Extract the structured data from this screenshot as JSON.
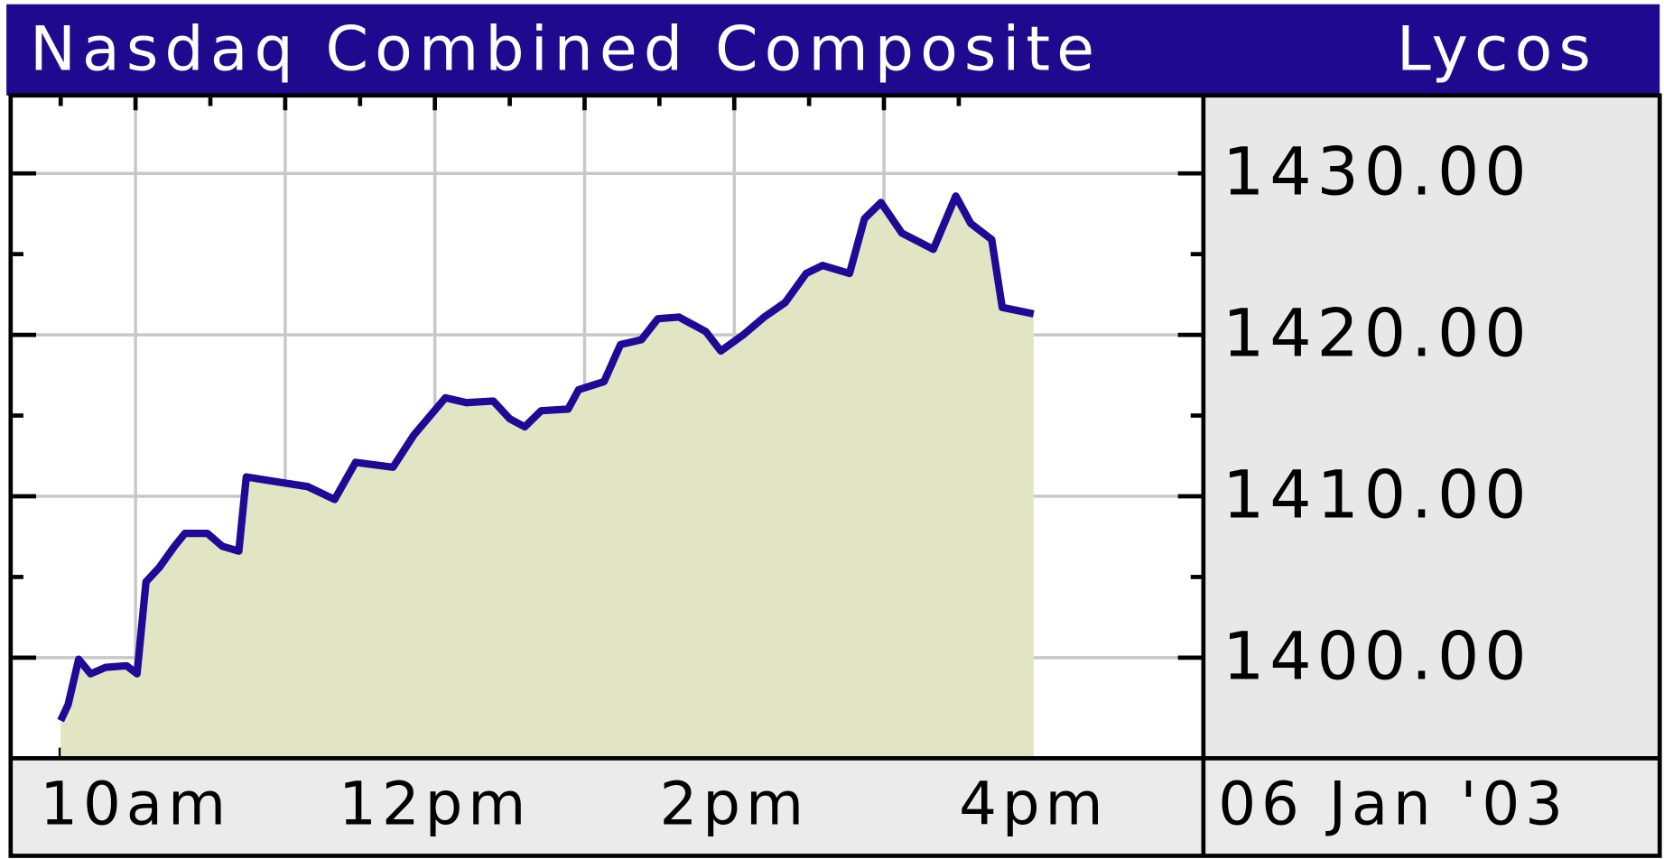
{
  "chart_data": {
    "type": "line",
    "title": "Nasdaq Combined Composite",
    "source": "Lycos",
    "date": "06 Jan '03",
    "x": [
      9.5,
      9.55,
      9.62,
      9.7,
      9.8,
      9.94,
      10.01,
      10.07,
      10.16,
      10.26,
      10.33,
      10.48,
      10.58,
      10.69,
      10.74,
      11.01,
      11.15,
      11.33,
      11.47,
      11.72,
      11.86,
      12.07,
      12.21,
      12.39,
      12.5,
      12.6,
      12.71,
      12.89,
      12.96,
      13.13,
      13.24,
      13.38,
      13.49,
      13.63,
      13.81,
      13.91,
      14.06,
      14.2,
      14.34,
      14.48,
      14.59,
      14.77,
      14.87,
      14.98,
      15.12,
      15.33,
      15.48,
      15.58,
      15.72,
      15.79,
      16.0
    ],
    "series": [
      {
        "color": "#1e0a96",
        "fill_color": "#e2e5c3",
        "values": [
          1396.1,
          1397.1,
          1399.9,
          1399.0,
          1399.4,
          1399.5,
          1399.0,
          1404.7,
          1405.6,
          1406.9,
          1407.7,
          1407.7,
          1406.9,
          1406.6,
          1411.2,
          1410.8,
          1410.6,
          1409.8,
          1412.1,
          1411.8,
          1413.8,
          1416.1,
          1415.8,
          1415.9,
          1414.8,
          1414.3,
          1415.3,
          1415.4,
          1416.6,
          1417.1,
          1419.4,
          1419.7,
          1421.0,
          1421.1,
          1420.2,
          1419.0,
          1420.0,
          1421.1,
          1422.0,
          1423.8,
          1424.3,
          1423.8,
          1427.2,
          1428.2,
          1426.3,
          1425.3,
          1428.6,
          1426.9,
          1425.9,
          1421.7,
          1421.3
        ]
      }
    ],
    "xlim": [
      9.18,
      17.12
    ],
    "xticks": [
      {
        "value": 10,
        "label": "10am"
      },
      {
        "value": 12,
        "label": "12pm"
      },
      {
        "value": 14,
        "label": "2pm"
      },
      {
        "value": 16,
        "label": "4pm"
      }
    ],
    "xgrid": [
      10,
      11,
      12,
      13,
      14,
      15
    ],
    "xminor": [
      9.5,
      10.5,
      11.5,
      12.5,
      13.5,
      14.5,
      15.5
    ],
    "ylim": [
      1393.9,
      1434.7
    ],
    "yticks": [
      {
        "value": 1400,
        "label": "1400.00"
      },
      {
        "value": 1410,
        "label": "1410.00"
      },
      {
        "value": 1420,
        "label": "1420.00"
      },
      {
        "value": 1430,
        "label": "1430.00"
      }
    ],
    "yminor": [
      1405,
      1415,
      1425
    ],
    "grid": true
  }
}
